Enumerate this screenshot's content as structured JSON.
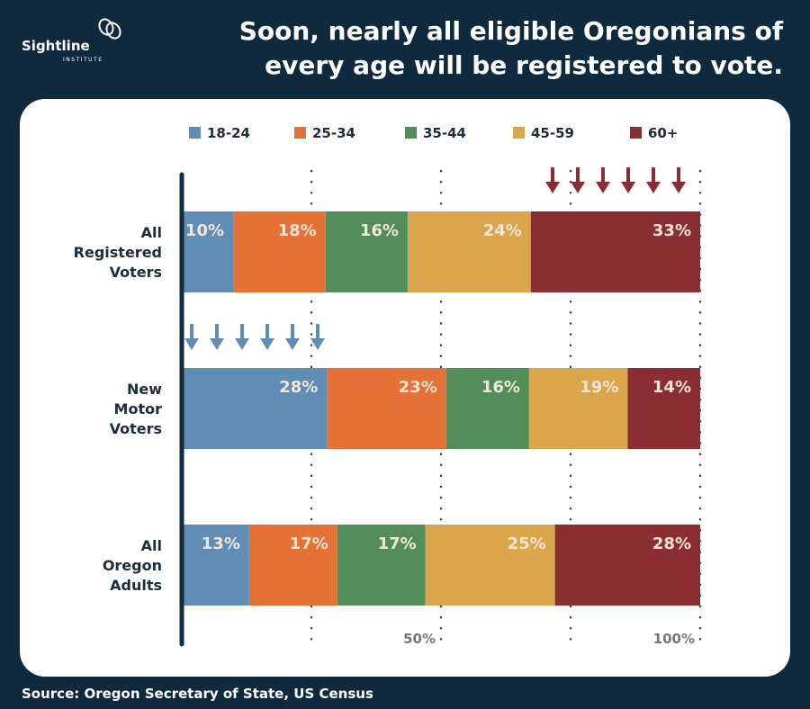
{
  "header": {
    "logo_name": "Sightline",
    "logo_sub": "INSTITUTE",
    "title_line1": "Soon, nearly all eligible Oregonians of",
    "title_line2": "every age will be registered to vote."
  },
  "footer": {
    "source": "Source: Oregon Secretary of State, US Census"
  },
  "colors": {
    "18-24": "#5f8db3",
    "25-34": "#e47136",
    "35-44": "#548d5c",
    "45-59": "#d9a64c",
    "60+": "#8b2e33",
    "background": "#0f2a3d"
  },
  "chart_data": {
    "type": "bar",
    "orientation": "horizontal-stacked",
    "categories": [
      "All Registered Voters",
      "New Motor Voters",
      "All Oregon Adults"
    ],
    "category_lines": [
      [
        "All",
        "Registered",
        "Voters"
      ],
      [
        "New",
        "Motor",
        "Voters"
      ],
      [
        "All",
        "Oregon",
        "Adults"
      ]
    ],
    "series": [
      {
        "name": "18-24",
        "values": [
          10,
          28,
          13
        ],
        "labels": [
          "10%",
          "28%",
          "13%"
        ]
      },
      {
        "name": "25-34",
        "values": [
          18,
          23,
          17
        ],
        "labels": [
          "18%",
          "23%",
          "17%"
        ]
      },
      {
        "name": "35-44",
        "values": [
          16,
          16,
          17
        ],
        "labels": [
          "16%",
          "16%",
          "17%"
        ]
      },
      {
        "name": "45-59",
        "values": [
          24,
          19,
          25
        ],
        "labels": [
          "24%",
          "19%",
          "25%"
        ]
      },
      {
        "name": "60+",
        "values": [
          33,
          14,
          28
        ],
        "labels": [
          "33%",
          "14%",
          "28%"
        ]
      }
    ],
    "xlim": [
      0,
      100
    ],
    "x_tick_labels": [
      "50%",
      "100%"
    ],
    "grid": "dotted vertical",
    "legend_placement": "top",
    "annotations": [
      {
        "type": "down-arrows",
        "series": "60+",
        "category": "All Registered Voters",
        "count": 6
      },
      {
        "type": "down-arrows",
        "series": "18-24",
        "category": "New Motor Voters",
        "count": 6
      }
    ]
  }
}
